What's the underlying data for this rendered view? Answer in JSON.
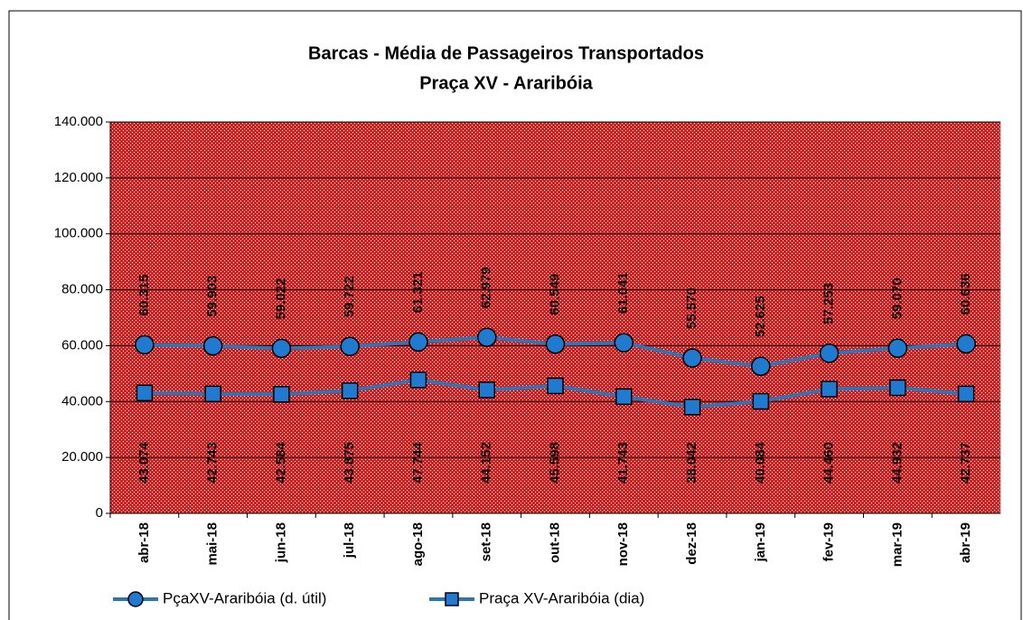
{
  "chart_data": {
    "type": "line",
    "title": "Barcas - Média de Passageiros Transportados",
    "subtitle": "Praça XV - Araribóia",
    "categories": [
      "abr-18",
      "mai-18",
      "jun-18",
      "jul-18",
      "ago-18",
      "set-18",
      "out-18",
      "nov-18",
      "dez-18",
      "jan-19",
      "fev-19",
      "mar-19",
      "abr-19"
    ],
    "series": [
      {
        "name": "PçaXV-Araribóia (d. útil)",
        "color": "#2e75b6",
        "marker": "circle",
        "values": [
          60315,
          59903,
          59022,
          59722,
          61321,
          62979,
          60549,
          61041,
          55570,
          52625,
          57253,
          59070,
          60636
        ],
        "value_labels": [
          "60.315",
          "59.903",
          "59.022",
          "59.722",
          "61.321",
          "62.979",
          "60.549",
          "61.041",
          "55.570",
          "52.625",
          "57.253",
          "59.070",
          "60.636"
        ]
      },
      {
        "name": "Praça XV-Araribóia (dia)",
        "color": "#2e75b6",
        "marker": "square",
        "values": [
          43074,
          42743,
          42584,
          43875,
          47744,
          44152,
          45598,
          41743,
          38042,
          40084,
          44460,
          44932,
          42737
        ],
        "value_labels": [
          "43.074",
          "42.743",
          "42.584",
          "43.875",
          "47.744",
          "44.152",
          "45.598",
          "41.743",
          "38.042",
          "40.084",
          "44.460",
          "44.932",
          "42.737"
        ]
      }
    ],
    "ylim": [
      0,
      140000
    ],
    "yticks": [
      0,
      {
        "value": 20000,
        "label": "20.000"
      },
      {
        "value": 40000,
        "label": "40.000"
      },
      {
        "value": 60000,
        "label": "60.000"
      },
      {
        "value": 80000,
        "label": "80.000"
      },
      {
        "value": 100000,
        "label": "100.000"
      },
      {
        "value": 120000,
        "label": "120.000"
      },
      {
        "value": 140000,
        "label": "140.000"
      }
    ],
    "grid": true
  }
}
